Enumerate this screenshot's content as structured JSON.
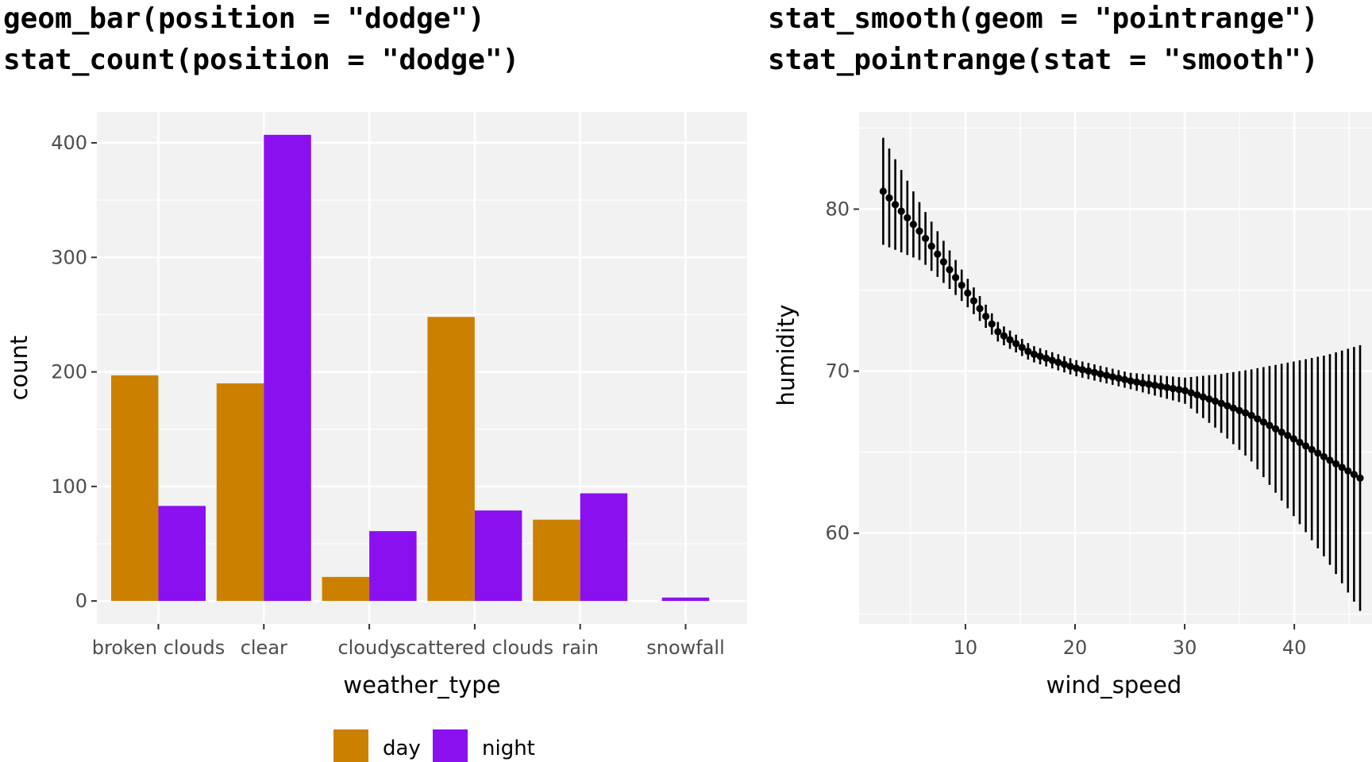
{
  "titles": {
    "left": [
      "geom_bar(position = \"dodge\")",
      "stat_count(position = \"dodge\")"
    ],
    "right": [
      "stat_smooth(geom = \"pointrange\")",
      "stat_pointrange(stat = \"smooth\")"
    ]
  },
  "colors": {
    "day": "#CC8000",
    "night": "#8B10F0",
    "panel_bg": "#F2F2F2",
    "grid": "#FFFFFF",
    "ink": "#000000"
  },
  "chart_data": [
    {
      "type": "bar",
      "xlabel": "weather_type",
      "ylabel": "count",
      "categories": [
        "broken clouds",
        "clear",
        "cloudy",
        "scattered clouds",
        "rain",
        "snowfall"
      ],
      "series": [
        {
          "name": "day",
          "values": [
            197,
            190,
            21,
            248,
            71,
            null
          ]
        },
        {
          "name": "night",
          "values": [
            83,
            407,
            61,
            79,
            94,
            3
          ]
        }
      ],
      "yticks": [
        0,
        100,
        200,
        300,
        400
      ],
      "ylim": [
        -20,
        427
      ],
      "grid": true,
      "legend": {
        "position": "bottom",
        "entries": [
          "day",
          "night"
        ]
      }
    },
    {
      "type": "line",
      "mark": "pointrange",
      "xlabel": "wind_speed",
      "ylabel": "humidity",
      "xticks": [
        10,
        20,
        30,
        40
      ],
      "yticks": [
        60,
        70,
        80
      ],
      "xlim": [
        0.3,
        48.1
      ],
      "ylim": [
        54.4,
        86.0
      ],
      "grid": true,
      "curve_knots": {
        "x": [
          2.5,
          6,
          10,
          13,
          16,
          20,
          25,
          30,
          33,
          36,
          40,
          43,
          46
        ],
        "y": [
          81.1,
          78.5,
          75.0,
          72.4,
          71.1,
          70.2,
          69.4,
          68.8,
          68.1,
          67.3,
          65.8,
          64.6,
          63.4
        ],
        "lower": [
          77.8,
          76.8,
          74.1,
          71.8,
          70.6,
          69.7,
          68.9,
          68.0,
          66.4,
          64.5,
          61.0,
          58.3,
          55.2
        ],
        "upper": [
          84.4,
          80.2,
          75.9,
          73.0,
          71.6,
          70.7,
          69.9,
          69.6,
          69.8,
          70.1,
          70.6,
          71.0,
          71.6
        ]
      },
      "n_points": 80
    }
  ]
}
